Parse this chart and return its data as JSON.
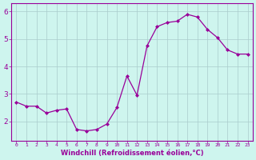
{
  "x": [
    0,
    1,
    2,
    3,
    4,
    5,
    6,
    7,
    8,
    9,
    10,
    11,
    12,
    13,
    14,
    15,
    16,
    17,
    18,
    19,
    20,
    21,
    22,
    23
  ],
  "y": [
    2.7,
    2.55,
    2.55,
    2.3,
    2.4,
    2.45,
    1.7,
    1.65,
    1.7,
    1.9,
    2.5,
    3.65,
    2.95,
    4.75,
    5.45,
    5.6,
    5.65,
    5.9,
    5.8,
    5.35,
    5.05,
    4.6,
    4.45,
    4.45
  ],
  "line_color": "#990099",
  "marker": "D",
  "marker_size": 2.0,
  "bg_color": "#cef5ee",
  "grid_color": "#aacccc",
  "xlabel": "Windchill (Refroidissement éolien,°C)",
  "xlabel_color": "#990099",
  "tick_color": "#990099",
  "ylim": [
    1.3,
    6.3
  ],
  "xlim": [
    -0.5,
    23.5
  ],
  "yticks": [
    2,
    3,
    4,
    5,
    6
  ],
  "xtick_labels": [
    "0",
    "1",
    "2",
    "3",
    "4",
    "5",
    "6",
    "7",
    "8",
    "9",
    "10",
    "11",
    "12",
    "13",
    "14",
    "15",
    "16",
    "17",
    "18",
    "19",
    "20",
    "21",
    "22",
    "23"
  ]
}
